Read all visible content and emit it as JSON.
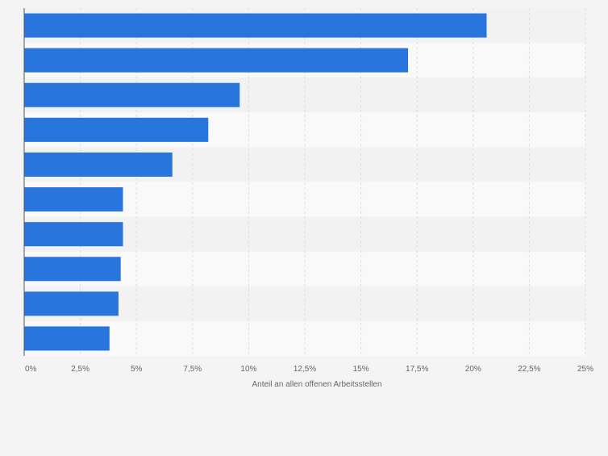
{
  "chart_data": {
    "type": "bar",
    "orientation": "horizontal",
    "categories": [
      "",
      "",
      "",
      "",
      "",
      "",
      "",
      "",
      "",
      ""
    ],
    "values": [
      20.6,
      17.1,
      9.6,
      8.2,
      6.6,
      4.4,
      4.4,
      4.3,
      4.2,
      3.8
    ],
    "xlabel": "Anteil an allen offenen Arbeitsstellen",
    "ylabel": "",
    "xlim": [
      0,
      25
    ],
    "xticks": [
      0,
      2.5,
      5,
      7.5,
      10,
      12.5,
      15,
      17.5,
      20,
      22.5,
      25
    ],
    "xtick_labels": [
      "0%",
      "2,5%",
      "5%",
      "7,5%",
      "10%",
      "12,5%",
      "15%",
      "17,5%",
      "20%",
      "22,5%",
      "25%"
    ],
    "grid": true,
    "legend": "none",
    "colors": {
      "bar": "#2876dd",
      "band_light": "#f9f9f9",
      "band_dark": "#f2f2f2",
      "grid": "#dcdcdc",
      "axis": "#555555",
      "tick_text": "#666666"
    }
  }
}
